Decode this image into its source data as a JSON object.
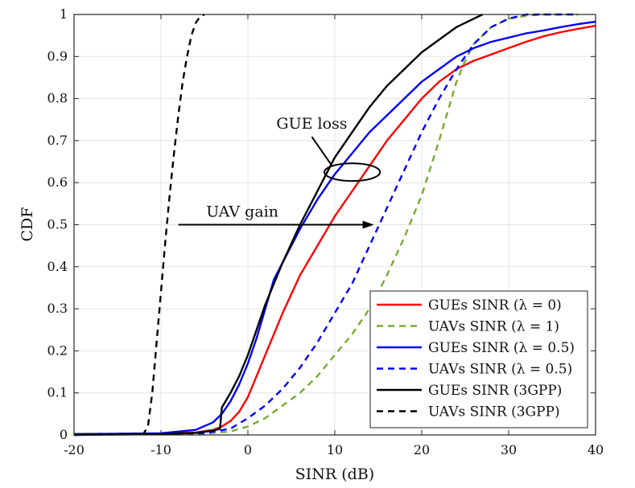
{
  "chart_data": {
    "type": "line",
    "title": "",
    "xlabel": "SINR (dB)",
    "ylabel": "CDF",
    "xlim": [
      -20,
      40
    ],
    "ylim": [
      0,
      1
    ],
    "xticks": [
      -20,
      -10,
      0,
      10,
      20,
      30,
      40
    ],
    "yticks": [
      0,
      0.1,
      0.2,
      0.3,
      0.4,
      0.5,
      0.6,
      0.7,
      0.8,
      0.9,
      1
    ],
    "grid": true,
    "legend_position": "bottom-right",
    "annotations": [
      {
        "id": "gue-loss",
        "text": "GUE loss",
        "ellipse_center": [
          12,
          0.625
        ],
        "ellipse_radii": [
          3.2,
          0.021
        ]
      },
      {
        "id": "uav-gain",
        "text": "UAV gain",
        "arrow_from": [
          -8,
          0.5
        ],
        "arrow_to": [
          14.5,
          0.5
        ]
      }
    ],
    "series": [
      {
        "name": "GUEs SINR (λ = 0)",
        "color": "#ff0000",
        "dash": "solid",
        "x": [
          -20,
          -10,
          -6,
          -4,
          -3,
          -2,
          -1,
          0,
          1,
          2,
          4,
          6,
          8,
          10,
          12,
          14,
          16,
          18,
          20,
          22,
          24,
          26,
          28,
          30,
          32,
          34,
          36,
          38,
          40
        ],
        "y": [
          0.002,
          0.003,
          0.006,
          0.012,
          0.02,
          0.033,
          0.055,
          0.09,
          0.14,
          0.19,
          0.29,
          0.38,
          0.45,
          0.52,
          0.58,
          0.64,
          0.7,
          0.75,
          0.8,
          0.84,
          0.87,
          0.89,
          0.905,
          0.92,
          0.935,
          0.948,
          0.958,
          0.966,
          0.973
        ]
      },
      {
        "name": "UAVs SINR (λ = 1)",
        "color": "#77ac30",
        "dash": "dashed",
        "x": [
          -20,
          -5,
          -2,
          0,
          2,
          4,
          6,
          8,
          10,
          12,
          14,
          16,
          18,
          20,
          22,
          23,
          24,
          25,
          26,
          28,
          30,
          32,
          34,
          36,
          38
        ],
        "y": [
          0.002,
          0.003,
          0.008,
          0.02,
          0.04,
          0.07,
          0.1,
          0.14,
          0.19,
          0.24,
          0.3,
          0.38,
          0.47,
          0.57,
          0.7,
          0.77,
          0.84,
          0.89,
          0.93,
          0.97,
          0.99,
          0.997,
          1,
          1,
          1
        ]
      },
      {
        "name": "GUEs SINR (λ = 0.5)",
        "color": "#0000ff",
        "dash": "solid",
        "x": [
          -20,
          -10,
          -6,
          -4,
          -3,
          -2,
          -1,
          0,
          1,
          2,
          3,
          4,
          5,
          6,
          8,
          10,
          12,
          14,
          16,
          18,
          20,
          22,
          24,
          26,
          28,
          30,
          32,
          34,
          36,
          38,
          40
        ],
        "y": [
          0.002,
          0.004,
          0.012,
          0.03,
          0.05,
          0.08,
          0.12,
          0.17,
          0.23,
          0.3,
          0.37,
          0.41,
          0.45,
          0.49,
          0.56,
          0.62,
          0.67,
          0.72,
          0.76,
          0.8,
          0.84,
          0.87,
          0.9,
          0.92,
          0.935,
          0.945,
          0.955,
          0.962,
          0.97,
          0.977,
          0.983
        ]
      },
      {
        "name": "UAVs SINR (λ = 0.5)",
        "color": "#0000ff",
        "dash": "dashed",
        "x": [
          -20,
          -5,
          -2,
          0,
          2,
          4,
          6,
          8,
          10,
          12,
          14,
          16,
          18,
          20,
          22,
          24,
          26,
          28,
          30,
          32,
          34,
          36,
          38
        ],
        "y": [
          0.002,
          0.004,
          0.015,
          0.04,
          0.07,
          0.11,
          0.16,
          0.22,
          0.29,
          0.36,
          0.45,
          0.54,
          0.63,
          0.72,
          0.8,
          0.87,
          0.93,
          0.97,
          0.99,
          1,
          1,
          1,
          1
        ]
      },
      {
        "name": "GUEs SINR (3GPP)",
        "color": "#000000",
        "dash": "solid",
        "x": [
          -20,
          -10,
          -6,
          -4,
          -3.2,
          -3,
          -2,
          -1,
          0,
          1,
          2,
          4,
          6,
          8,
          10,
          12,
          14,
          16,
          18,
          20,
          22,
          24,
          26,
          27
        ],
        "y": [
          0,
          0.002,
          0.005,
          0.01,
          0.015,
          0.065,
          0.1,
          0.14,
          0.19,
          0.25,
          0.31,
          0.41,
          0.5,
          0.58,
          0.66,
          0.72,
          0.78,
          0.83,
          0.87,
          0.91,
          0.94,
          0.97,
          0.99,
          1
        ]
      },
      {
        "name": "UAVs SINR (3GPP)",
        "color": "#000000",
        "dash": "dashed",
        "x": [
          -20,
          -12,
          -11.5,
          -11,
          -10.5,
          -10,
          -9.5,
          -9,
          -8.5,
          -8,
          -7.5,
          -7,
          -6.5,
          -6,
          -5.5,
          -5
        ],
        "y": [
          0,
          0.003,
          0.02,
          0.1,
          0.22,
          0.34,
          0.46,
          0.57,
          0.67,
          0.76,
          0.84,
          0.9,
          0.95,
          0.98,
          0.995,
          1
        ]
      }
    ],
    "legend": [
      "GUEs SINR (λ = 0)",
      "UAVs SINR (λ = 1)",
      "GUEs SINR (λ = 0.5)",
      "UAVs SINR (λ = 0.5)",
      "GUEs SINR (3GPP)",
      "UAVs SINR (3GPP)"
    ]
  }
}
